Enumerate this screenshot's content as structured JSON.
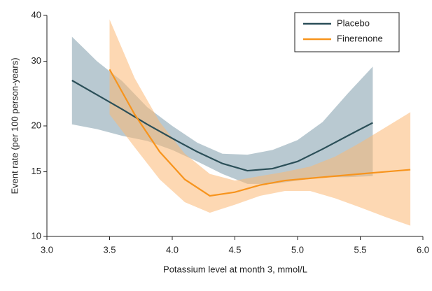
{
  "chart_data": {
    "type": "line",
    "log_y": true,
    "xlabel": "Potassium level at month 3, mmol/L",
    "ylabel": "Event rate (per 100 person-years)",
    "xlim": [
      3.0,
      6.0
    ],
    "xticks": [
      {
        "value": 3.0,
        "label": "3.0"
      },
      3.5,
      {
        "value": 4.0,
        "label": "4.0"
      },
      4.5,
      {
        "value": 5.0,
        "label": "5.0"
      },
      5.5,
      {
        "value": 6.0,
        "label": "6.0"
      }
    ],
    "ylim": [
      10,
      40
    ],
    "yticks": [
      10,
      15,
      20,
      30,
      40
    ],
    "legend": "top-right",
    "series": [
      {
        "name": "Placebo",
        "color": "#2b4f58",
        "band_color": "#7f9cab",
        "x": [
          3.2,
          3.4,
          3.6,
          3.8,
          4.0,
          4.2,
          4.4,
          4.6,
          4.8,
          5.0,
          5.2,
          5.4,
          5.6
        ],
        "values": [
          26.6,
          24.3,
          22.2,
          20.2,
          18.5,
          17.0,
          15.8,
          15.1,
          15.3,
          16.0,
          17.3,
          18.8,
          20.4
        ],
        "upper": [
          35,
          30,
          26.5,
          22.5,
          20,
          18,
          16.8,
          16.7,
          17.2,
          18.3,
          20.5,
          24.5,
          29
        ],
        "lower": [
          20.2,
          19.6,
          18.8,
          18.2,
          17.2,
          16.0,
          14.8,
          13.9,
          13.9,
          14.2,
          14.5,
          14.5,
          14.6
        ]
      },
      {
        "name": "Finerenone",
        "color": "#f7941d",
        "band_color": "#fbb874",
        "x": [
          3.5,
          3.7,
          3.9,
          4.1,
          4.3,
          4.5,
          4.7,
          4.9,
          5.1,
          5.3,
          5.5,
          5.7,
          5.9
        ],
        "values": [
          28.5,
          21.5,
          17.0,
          14.3,
          12.9,
          13.2,
          13.8,
          14.2,
          14.4,
          14.6,
          14.8,
          15.0,
          15.2
        ],
        "upper": [
          39,
          27,
          20.5,
          16.8,
          14.8,
          14.2,
          14.6,
          15.0,
          15.5,
          16.5,
          18.0,
          19.8,
          21.8
        ],
        "lower": [
          21.5,
          17.5,
          14.3,
          12.4,
          11.6,
          12.2,
          12.9,
          13.3,
          13.3,
          12.7,
          12.0,
          11.3,
          10.7
        ]
      }
    ]
  }
}
